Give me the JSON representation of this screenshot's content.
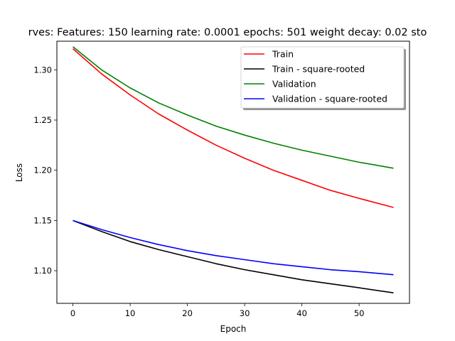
{
  "chart_data": {
    "type": "line",
    "title": "rves: Features: 150 learning rate: 0.0001 epochs: 501 weight decay: 0.02 sto",
    "xlabel": "Epoch",
    "ylabel": "Loss",
    "xlim": [
      -2.8,
      58.8
    ],
    "ylim": [
      1.0675,
      1.3285
    ],
    "xticks": [
      0,
      10,
      20,
      30,
      40,
      50
    ],
    "yticks": [
      1.1,
      1.15,
      1.2,
      1.25,
      1.3
    ],
    "xtick_labels": [
      "0",
      "10",
      "20",
      "30",
      "40",
      "50"
    ],
    "ytick_labels": [
      "1.10",
      "1.15",
      "1.20",
      "1.25",
      "1.30"
    ],
    "grid": false,
    "legend_position": "upper-right",
    "series": [
      {
        "name": "Train",
        "color": "#ff0000",
        "x": [
          0,
          5,
          10,
          15,
          20,
          25,
          30,
          35,
          40,
          45,
          50,
          56
        ],
        "values": [
          1.321,
          1.296,
          1.275,
          1.256,
          1.24,
          1.225,
          1.212,
          1.2,
          1.19,
          1.18,
          1.172,
          1.163
        ]
      },
      {
        "name": "Train - square-rooted",
        "color": "#000000",
        "x": [
          0,
          5,
          10,
          15,
          20,
          25,
          30,
          35,
          40,
          45,
          50,
          56
        ],
        "values": [
          1.15,
          1.139,
          1.129,
          1.121,
          1.114,
          1.107,
          1.101,
          1.096,
          1.091,
          1.087,
          1.083,
          1.078
        ]
      },
      {
        "name": "Validation",
        "color": "#008000",
        "x": [
          0,
          5,
          10,
          15,
          20,
          25,
          30,
          35,
          40,
          45,
          50,
          56
        ],
        "values": [
          1.323,
          1.3,
          1.282,
          1.267,
          1.255,
          1.244,
          1.235,
          1.227,
          1.22,
          1.214,
          1.208,
          1.202
        ]
      },
      {
        "name": "Validation - square-rooted",
        "color": "#0000ff",
        "x": [
          0,
          5,
          10,
          15,
          20,
          25,
          30,
          35,
          40,
          45,
          50,
          56
        ],
        "values": [
          1.15,
          1.141,
          1.133,
          1.126,
          1.12,
          1.115,
          1.111,
          1.107,
          1.104,
          1.101,
          1.099,
          1.096
        ]
      }
    ]
  }
}
